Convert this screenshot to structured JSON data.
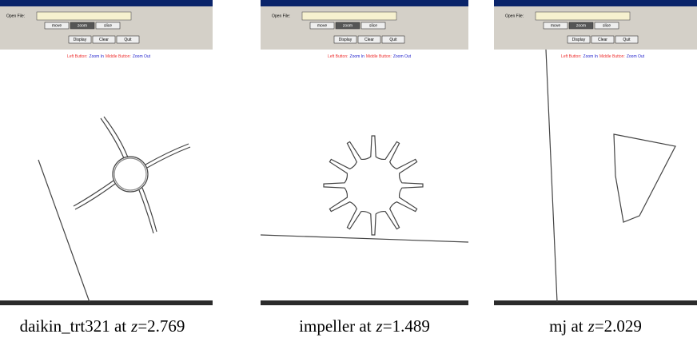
{
  "panels": [
    {
      "open_file_label": "Open File:",
      "buttons_row1": [
        "move",
        "zoom",
        "slice"
      ],
      "buttons_row2": [
        "Display",
        "Clear",
        "Quit"
      ],
      "hint": {
        "left": "Left Button:",
        "left_action": "Zoom In",
        "middle": "Middle Button:",
        "middle_action": "Zoom Out"
      },
      "caption": {
        "name": "daikin_trt321 at",
        "var": "z",
        "value": "=2.769"
      }
    },
    {
      "open_file_label": "Open File:",
      "buttons_row1": [
        "move",
        "zoom",
        "slice"
      ],
      "buttons_row2": [
        "Display",
        "Clear",
        "Quit"
      ],
      "hint": {
        "left": "Left Button:",
        "left_action": "Zoom In",
        "middle": "Middle Button:",
        "middle_action": "Zoom Out"
      },
      "caption": {
        "name": "impeller at",
        "var": "z",
        "value": "=1.489"
      }
    },
    {
      "open_file_label": "Open File:",
      "buttons_row1": [
        "move",
        "zoom",
        "slice"
      ],
      "buttons_row2": [
        "Display",
        "Clear",
        "Quit"
      ],
      "hint": {
        "left": "Left Button:",
        "left_action": "Zoom In",
        "middle": "Middle Button:",
        "middle_action": "Zoom Out"
      },
      "caption": {
        "name": "mj at",
        "var": "z",
        "value": "=2.029"
      }
    }
  ]
}
